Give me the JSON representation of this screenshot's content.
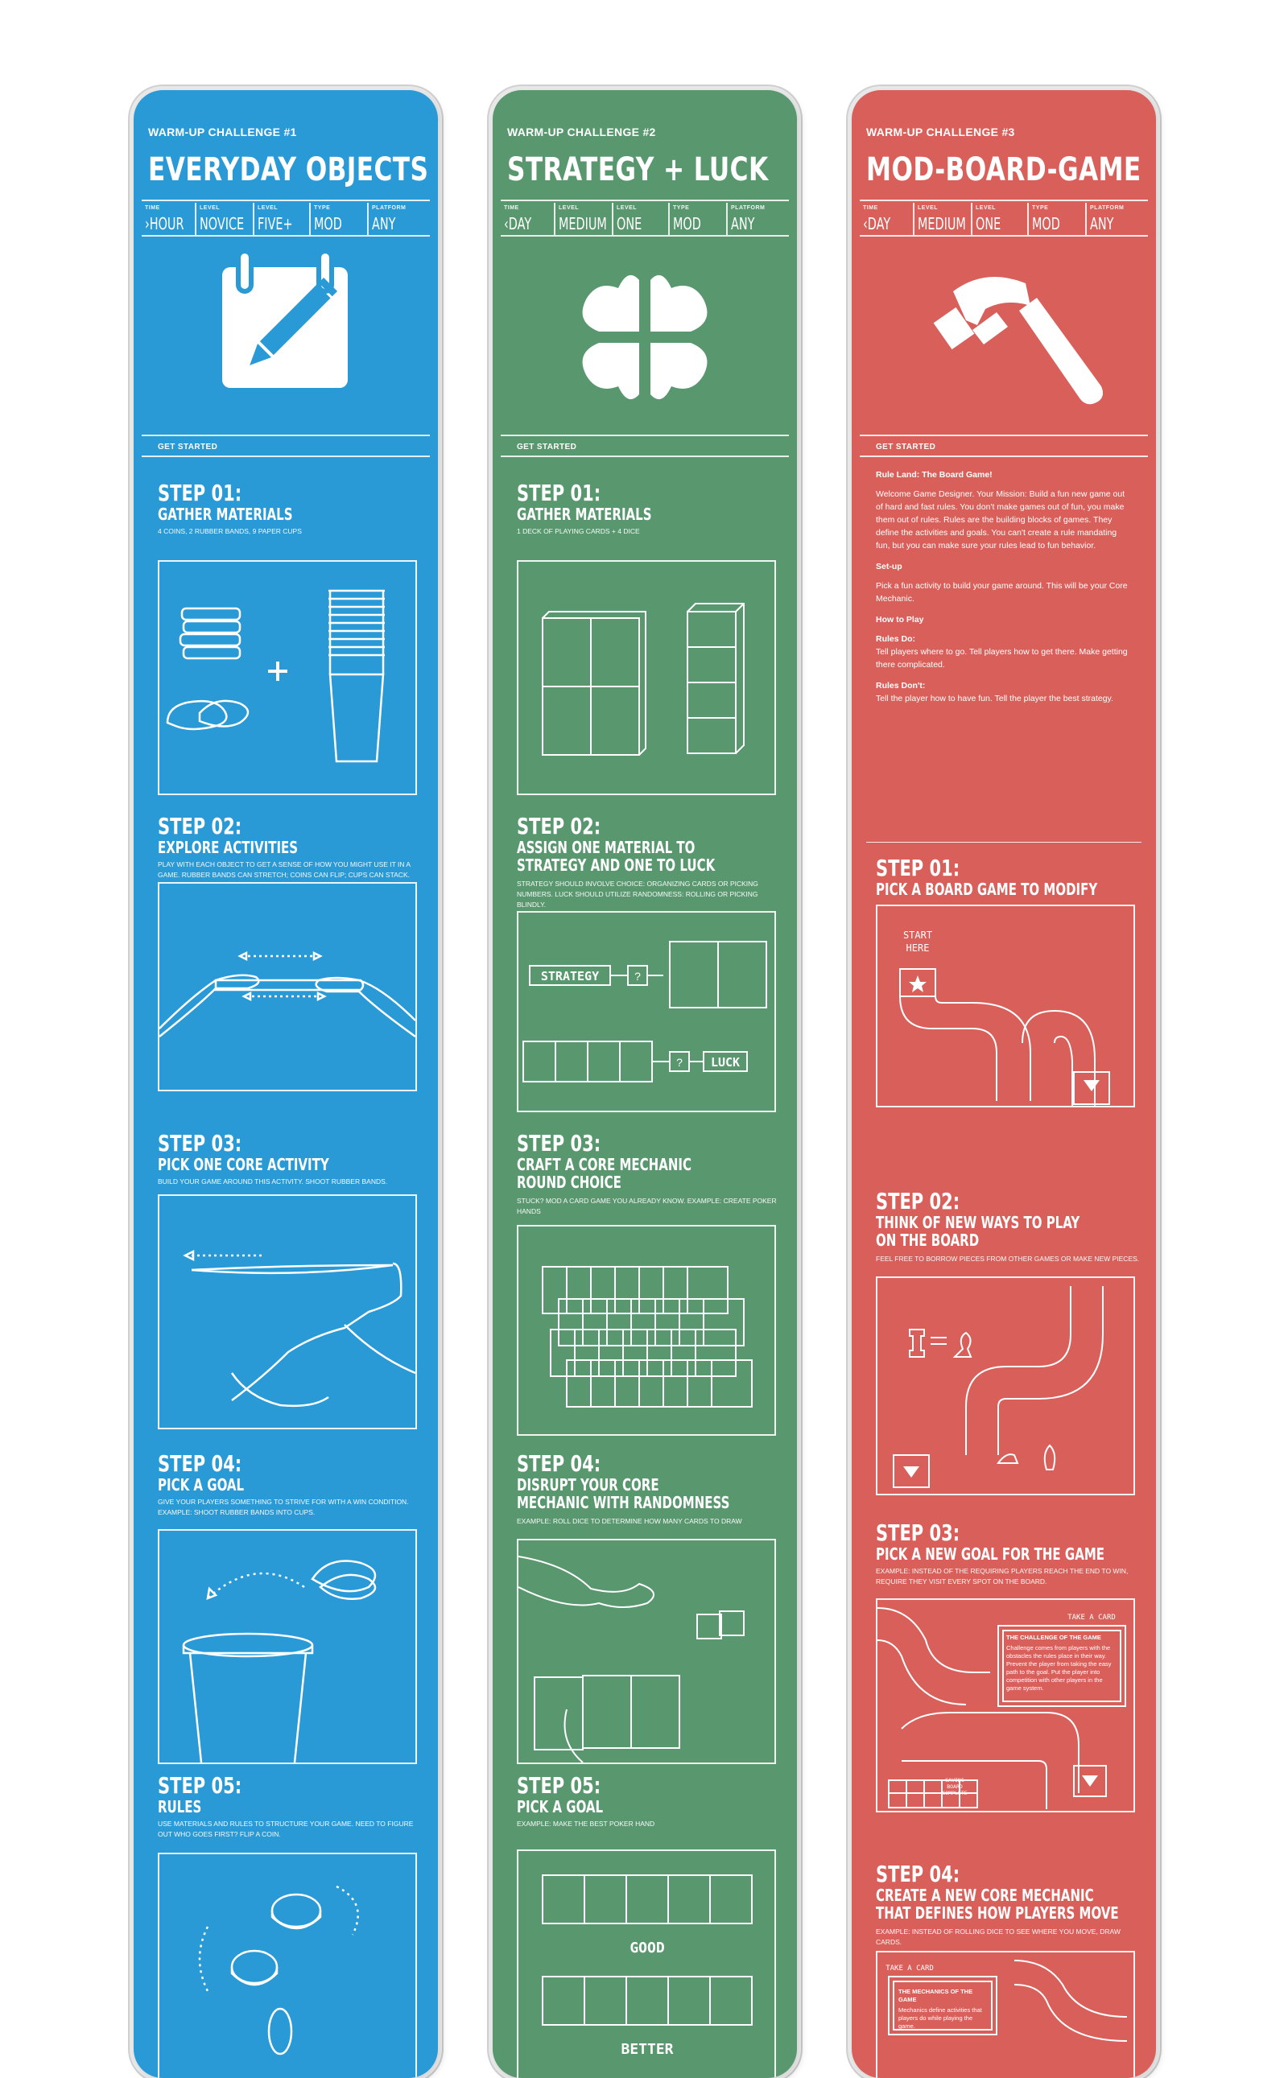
{
  "colors": {
    "blue": "#2a9ad7",
    "green": "#59986f",
    "red": "#d9605a",
    "line": "#ffffff"
  },
  "meta_keys": {
    "time": "TIME",
    "level": "LEVEL",
    "players": "LEVEL",
    "type": "TYPE",
    "platform": "PLATFORM"
  },
  "cards": [
    {
      "kicker": "WARM-UP CHALLENGE #1",
      "title": "EVERYDAY OBJECTS",
      "meta": [
        "›HOUR",
        "NOVICE",
        "FIVE+",
        "MOD",
        "ANY"
      ],
      "icon": "calendar-pencil-icon",
      "get_started": "GET STARTED",
      "steps": [
        {
          "num": "STEP 01:",
          "title": [
            "GATHER MATERIALS"
          ],
          "desc": "4 COINS, 2 RUBBER BANDS, 9 PAPER CUPS"
        },
        {
          "num": "STEP 02:",
          "title": [
            "EXPLORE ACTIVITIES"
          ],
          "desc": "PLAY WITH EACH OBJECT TO GET A SENSE OF HOW YOU MIGHT USE IT IN A GAME. RUBBER BANDS CAN STRETCH; COINS CAN FLIP; CUPS CAN STACK."
        },
        {
          "num": "STEP 03:",
          "title": [
            "PICK ONE CORE ACTIVITY"
          ],
          "desc": "BUILD YOUR GAME AROUND THIS ACTIVITY. SHOOT RUBBER BANDS."
        },
        {
          "num": "STEP 04:",
          "title": [
            "PICK A GOAL"
          ],
          "desc": "GIVE YOUR PLAYERS SOMETHING TO STRIVE FOR WITH A WIN CONDITION. EXAMPLE: SHOOT RUBBER BANDS INTO CUPS."
        },
        {
          "num": "STEP 05:",
          "title": [
            "RULES"
          ],
          "desc": "USE MATERIALS AND RULES TO STRUCTURE YOUR GAME. NEED TO FIGURE OUT WHO GOES FIRST? FLIP A COIN."
        }
      ]
    },
    {
      "kicker": "WARM-UP CHALLENGE #2",
      "title": "STRATEGY + LUCK",
      "meta": [
        "‹DAY",
        "MEDIUM",
        "ONE",
        "MOD",
        "ANY"
      ],
      "icon": "clover-icon",
      "get_started": "GET STARTED",
      "labels": {
        "strategy": "STRATEGY",
        "luck": "LUCK",
        "q": "?",
        "good": "GOOD",
        "better": "BETTER"
      },
      "steps": [
        {
          "num": "STEP 01:",
          "title": [
            "GATHER MATERIALS"
          ],
          "desc": "1 DECK OF PLAYING CARDS + 4 DICE"
        },
        {
          "num": "STEP 02:",
          "title": [
            "ASSIGN ONE MATERIAL TO",
            "STRATEGY AND ONE TO LUCK"
          ],
          "desc": "STRATEGY SHOULD INVOLVE CHOICE: ORGANIZING CARDS OR PICKING NUMBERS. LUCK SHOULD UTILIZE RANDOMNESS: ROLLING OR PICKING BLINDLY."
        },
        {
          "num": "STEP 03:",
          "title": [
            "CRAFT A CORE MECHANIC",
            "ROUND CHOICE"
          ],
          "desc": "STUCK? MOD A CARD GAME YOU ALREADY KNOW. EXAMPLE: CREATE POKER HANDS"
        },
        {
          "num": "STEP 04:",
          "title": [
            "DISRUPT YOUR CORE",
            "MECHANIC WITH RANDOMNESS"
          ],
          "desc": "EXAMPLE: ROLL DICE TO DETERMINE HOW MANY CARDS TO DRAW"
        },
        {
          "num": "STEP 05:",
          "title": [
            "PICK A GOAL"
          ],
          "desc": "EXAMPLE: MAKE THE BEST POKER HAND"
        }
      ]
    },
    {
      "kicker": "WARM-UP CHALLENGE #3",
      "title": "MOD-BOARD-GAME",
      "meta": [
        "‹DAY",
        "MEDIUM",
        "ONE",
        "MOD",
        "ANY"
      ],
      "icon": "hammer-icon",
      "get_started": "GET STARTED",
      "intro": {
        "heading": "Rule Land: The Board Game!",
        "body": "Welcome Game Designer. Your Mission: Build a fun new game out of hard and fast rules. You don't make games out of fun, you make them out of rules. Rules are the building blocks of games. They define the activities and goals. You can't create a rule mandating fun, but you can make sure your rules lead to fun behavior.",
        "setup_h": "Set-up",
        "setup": "Pick a fun activity to build your game around. This will be your Core Mechanic.",
        "how_h": "How to Play",
        "do_h": "Rules Do:",
        "do": "Tell players where to go. Tell players how to get there. Make getting there complicated.",
        "dont_h": "Rules Don't:",
        "dont": "Tell the player how to have fun. Tell the player the best strategy."
      },
      "labels": {
        "start": "START",
        "here": "HERE",
        "take_card": "TAKE A CARD",
        "challenge_title": "THE CHALLENGE OF THE GAME",
        "challenge_body": "Challenge comes from players with the obstacles the rules place in their way. Prevent the player from taking the easy path to the goal. Put the player into competition with other players in the game system.",
        "board_complete": [
          "SAVING",
          "BOARD",
          "COMPLETE"
        ],
        "mechanics_title": "THE MECHANICS OF THE GAME",
        "mechanics_body": "Mechanics define activities that players do while playing the game."
      },
      "steps": [
        {
          "num": "STEP 01:",
          "title": [
            "PICK A BOARD GAME TO MODIFY"
          ],
          "desc": ""
        },
        {
          "num": "STEP 02:",
          "title": [
            "THINK OF NEW WAYS TO PLAY",
            "ON THE BOARD"
          ],
          "desc": "FEEL FREE TO BORROW PIECES FROM OTHER GAMES OR MAKE NEW PIECES."
        },
        {
          "num": "STEP 03:",
          "title": [
            "PICK A NEW GOAL FOR THE GAME"
          ],
          "desc": "EXAMPLE: INSTEAD OF THE REQUIRING PLAYERS REACH THE END TO WIN, REQUIRE THEY VISIT EVERY SPOT ON THE BOARD."
        },
        {
          "num": "STEP 04:",
          "title": [
            "CREATE A NEW CORE MECHANIC",
            "THAT DEFINES HOW PLAYERS MOVE"
          ],
          "desc": "EXAMPLE: INSTEAD OF ROLLING DICE TO SEE WHERE YOU MOVE, DRAW CARDS."
        }
      ]
    }
  ]
}
